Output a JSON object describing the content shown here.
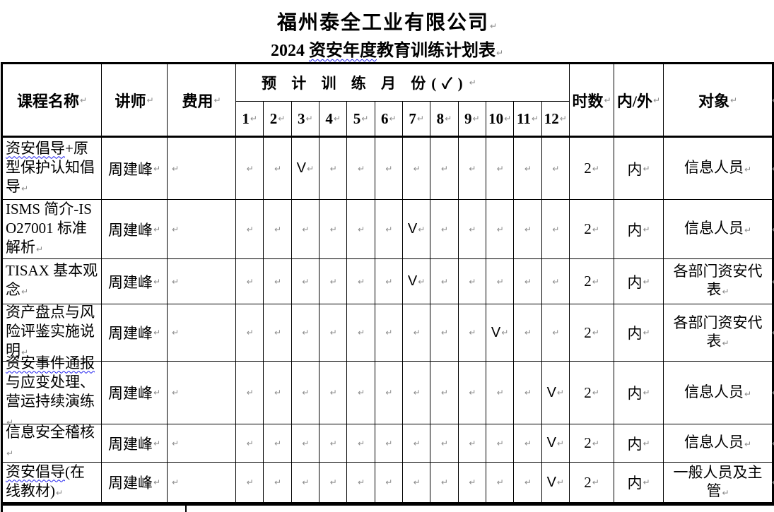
{
  "page": {
    "company_title": "福州泰全工业有限公司",
    "subtitle": {
      "prefix": "2024 ",
      "wavy": "资安年度",
      "suffix": "教育训练计划表"
    }
  },
  "marks": {
    "pilcrow": "↵",
    "check": "V"
  },
  "table": {
    "header": {
      "course": "课程名称",
      "instructor": "讲师",
      "fee": "费用",
      "months_title": "预 计 训 练 月 份(✓)",
      "months": [
        "1",
        "2",
        "3",
        "4",
        "5",
        "6",
        "7",
        "8",
        "9",
        "10",
        "11",
        "12"
      ],
      "hours": "时数",
      "in_out": "内/外",
      "target": "对象"
    },
    "rows": [
      {
        "course_wavy": "资安倡导",
        "course_rest": "+原型保护认知倡导",
        "instructor": "周建峰",
        "fee": "",
        "check_month": 3,
        "hours": "2",
        "in_out": "内",
        "target": "信息人员"
      },
      {
        "course_wavy": "",
        "course_rest": "ISMS 简介-ISO27001 标准解析",
        "instructor": "周建峰",
        "fee": "",
        "check_month": 7,
        "hours": "2",
        "in_out": "内",
        "target": "信息人员"
      },
      {
        "course_wavy": "",
        "course_rest": "TISAX 基本观念",
        "instructor": "周建峰",
        "fee": "",
        "check_month": 7,
        "hours": "2",
        "in_out": "内",
        "target": "各部门资安代表"
      },
      {
        "course_wavy": "",
        "course_rest": "资产盘点与风险评鉴实施说明",
        "instructor": "周建峰",
        "fee": "",
        "check_month": 10,
        "hours": "2",
        "in_out": "内",
        "target": "各部门资安代表"
      },
      {
        "course_wavy": "资安事件通报",
        "course_rest": "与应变处理、营运持续演练",
        "instructor": "周建峰",
        "fee": "",
        "check_month": 12,
        "hours": "2",
        "in_out": "内",
        "target": "信息人员"
      },
      {
        "course_wavy": "",
        "course_rest": "信息安全稽核",
        "instructor": "周建峰",
        "fee": "",
        "check_month": 12,
        "hours": "2",
        "in_out": "内",
        "target": "信息人员"
      },
      {
        "course_wavy": "资安倡导",
        "course_rest": "(在线教材)",
        "instructor": "周建峰",
        "fee": "",
        "check_month": 12,
        "hours": "2",
        "in_out": "内",
        "target": "一般人员及主管"
      }
    ]
  },
  "colors": {
    "squiggle": "#2222ee",
    "pilcrow_gray": "#8a8a8a",
    "border": "#000000",
    "background": "#ffffff"
  }
}
